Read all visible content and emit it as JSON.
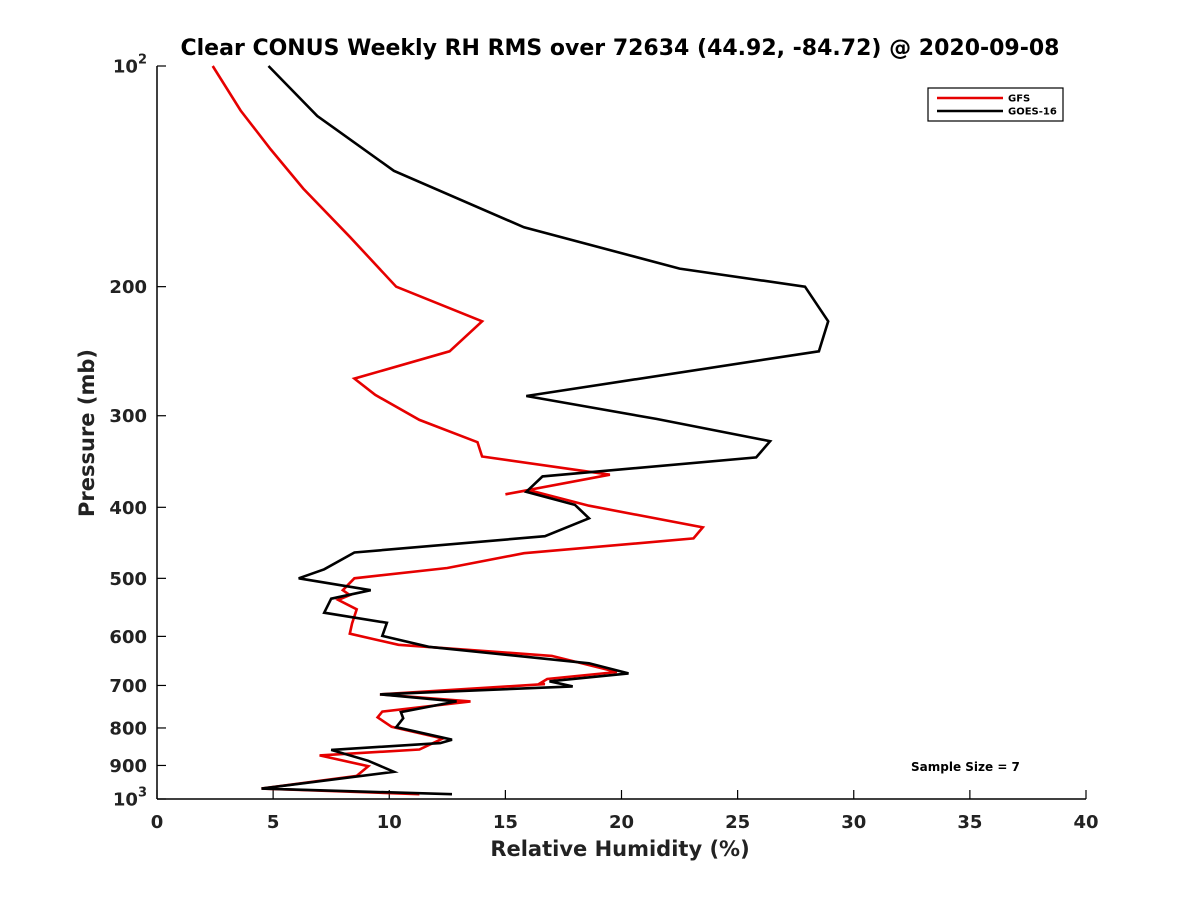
{
  "chart_data": {
    "type": "line",
    "title": "Clear CONUS Weekly RH RMS over 72634 (44.92, -84.72) @ 2020-09-08",
    "xlabel": "Relative Humidity (%)",
    "ylabel": "Pressure (mb)",
    "xlim": [
      0,
      40
    ],
    "ylim": [
      100,
      1000
    ],
    "yscale": "log",
    "yreversed": true,
    "xticks": [
      "0",
      "5",
      "10",
      "15",
      "20",
      "25",
      "30",
      "35",
      "40"
    ],
    "xtick_values": [
      0,
      5,
      10,
      15,
      20,
      25,
      30,
      35,
      40
    ],
    "ytick_values": [
      100,
      200,
      300,
      400,
      500,
      600,
      700,
      800,
      900,
      1000
    ],
    "yticks": [
      {
        "base": "10",
        "exp": "2"
      },
      {
        "base": "200",
        "exp": ""
      },
      {
        "base": "300",
        "exp": ""
      },
      {
        "base": "400",
        "exp": ""
      },
      {
        "base": "500",
        "exp": ""
      },
      {
        "base": "600",
        "exp": ""
      },
      {
        "base": "700",
        "exp": ""
      },
      {
        "base": "800",
        "exp": ""
      },
      {
        "base": "900",
        "exp": ""
      },
      {
        "base": "10",
        "exp": "3"
      }
    ],
    "legend_position": "top-right",
    "annotation": "Sample Size = 7",
    "series": [
      {
        "name": "GFS",
        "color": "#e60000",
        "points": [
          [
            2.4,
            100
          ],
          [
            3.6,
            115
          ],
          [
            4.9,
            130
          ],
          [
            6.3,
            147
          ],
          [
            8.3,
            171
          ],
          [
            10.3,
            200
          ],
          [
            14.0,
            223
          ],
          [
            12.6,
            245
          ],
          [
            8.5,
            267
          ],
          [
            9.4,
            281
          ],
          [
            11.3,
            304
          ],
          [
            13.8,
            326
          ],
          [
            14.0,
            341
          ],
          [
            19.5,
            361
          ],
          [
            15.0,
            384
          ],
          [
            16.0,
            379
          ],
          [
            18.6,
            398
          ],
          [
            23.5,
            426
          ],
          [
            23.1,
            441
          ],
          [
            15.8,
            462
          ],
          [
            12.5,
            484
          ],
          [
            8.5,
            500
          ],
          [
            8.0,
            519
          ],
          [
            8.3,
            527
          ],
          [
            7.8,
            535
          ],
          [
            8.6,
            551
          ],
          [
            8.4,
            576
          ],
          [
            8.3,
            595
          ],
          [
            10.4,
            616
          ],
          [
            17.0,
            638
          ],
          [
            19.8,
            671
          ],
          [
            16.8,
            686
          ],
          [
            16.5,
            695
          ],
          [
            16.7,
            697
          ],
          [
            9.6,
            720
          ],
          [
            13.5,
            736
          ],
          [
            9.7,
            760
          ],
          [
            9.5,
            774
          ],
          [
            10.1,
            797
          ],
          [
            12.3,
            827
          ],
          [
            11.3,
            856
          ],
          [
            7.0,
            872
          ],
          [
            9.1,
            902
          ],
          [
            8.6,
            930
          ],
          [
            4.5,
            968
          ],
          [
            11.3,
            985
          ]
        ]
      },
      {
        "name": "GOES-16",
        "color": "#000000",
        "points": [
          [
            4.8,
            100
          ],
          [
            6.9,
            117
          ],
          [
            10.2,
            139
          ],
          [
            15.8,
            166
          ],
          [
            22.5,
            189
          ],
          [
            27.9,
            200
          ],
          [
            28.9,
            223
          ],
          [
            28.5,
            245
          ],
          [
            15.9,
            282
          ],
          [
            21.5,
            303
          ],
          [
            26.4,
            325
          ],
          [
            25.8,
            342
          ],
          [
            16.6,
            363
          ],
          [
            15.9,
            381
          ],
          [
            18.0,
            397
          ],
          [
            18.6,
            414
          ],
          [
            16.7,
            438
          ],
          [
            8.5,
            461
          ],
          [
            7.2,
            486
          ],
          [
            6.1,
            500
          ],
          [
            9.2,
            519
          ],
          [
            7.5,
            533
          ],
          [
            7.2,
            557
          ],
          [
            9.9,
            575
          ],
          [
            9.7,
            599
          ],
          [
            11.7,
            620
          ],
          [
            18.6,
            653
          ],
          [
            20.3,
            674
          ],
          [
            16.9,
            691
          ],
          [
            17.9,
            702
          ],
          [
            9.6,
            720
          ],
          [
            12.9,
            736
          ],
          [
            10.5,
            761
          ],
          [
            10.6,
            776
          ],
          [
            10.3,
            798
          ],
          [
            12.7,
            830
          ],
          [
            12.2,
            839
          ],
          [
            7.5,
            857
          ],
          [
            9.1,
            887
          ],
          [
            10.2,
            918
          ],
          [
            4.5,
            968
          ],
          [
            12.7,
            985
          ]
        ]
      }
    ]
  }
}
